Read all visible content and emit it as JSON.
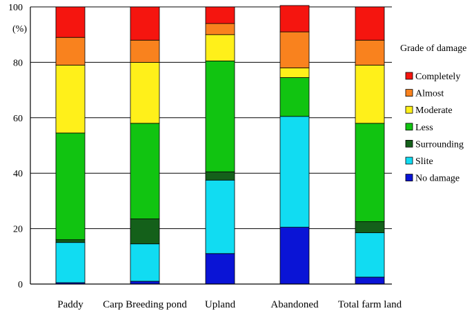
{
  "chart_data": {
    "type": "bar",
    "stacked": true,
    "categories": [
      "Paddy",
      "Carp Breeding pond",
      "Upland",
      "Abandoned",
      "Total farm land"
    ],
    "ylabel": "(%)",
    "ylim": [
      0,
      100
    ],
    "yticks": [
      0,
      20,
      40,
      60,
      80,
      100
    ],
    "grid": true,
    "legend": {
      "title": "Grade of damage",
      "position": "right"
    },
    "series": [
      {
        "name": "No damage",
        "color": "#0a14d6",
        "values": [
          0.5,
          1,
          11,
          20.5,
          2.5
        ]
      },
      {
        "name": "Slite",
        "color": "#11dcf2",
        "values": [
          14.5,
          13.5,
          26.5,
          40,
          16
        ]
      },
      {
        "name": "Surrounding",
        "color": "#14601a",
        "values": [
          1,
          9,
          3,
          0,
          4
        ]
      },
      {
        "name": "Less",
        "color": "#11c411",
        "values": [
          38.5,
          34.5,
          40,
          14,
          35.5
        ]
      },
      {
        "name": "Moderate",
        "color": "#fff01a",
        "values": [
          24.5,
          22,
          9.5,
          3.5,
          21
        ]
      },
      {
        "name": "Almost",
        "color": "#f9821e",
        "values": [
          10,
          8,
          4,
          13,
          9
        ]
      },
      {
        "name": "Completely",
        "color": "#f5150f",
        "values": [
          11,
          12,
          6,
          9.5,
          12
        ]
      }
    ],
    "legend_order": [
      "Completely",
      "Almost",
      "Moderate",
      "Less",
      "Surrounding",
      "Slite",
      "No damage"
    ]
  }
}
